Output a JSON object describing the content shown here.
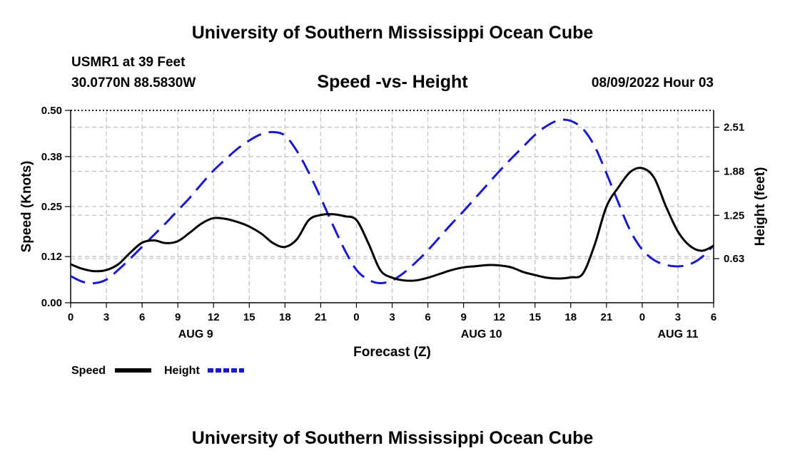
{
  "page_title": "University of Southern Mississippi Ocean Cube",
  "footer_title": "University of Southern Mississippi Ocean Cube",
  "station": "USMR1 at 39 Feet",
  "coords": "30.0770N  88.5830W",
  "date": "08/09/2022 Hour 03",
  "chart_data": {
    "type": "line",
    "title": "Speed -vs- Height",
    "xlabel": "Forecast (Z)",
    "ylabel": "Speed (Knots)",
    "ylabel_right": "Height (feet)",
    "x_hours": [
      0,
      3,
      6,
      9,
      12,
      15,
      18,
      21,
      24,
      27,
      30,
      33,
      36,
      39,
      42,
      45,
      48,
      51,
      54
    ],
    "xticks": [
      "0",
      "3",
      "6",
      "9",
      "12",
      "15",
      "18",
      "21",
      "0",
      "3",
      "6",
      "9",
      "12",
      "15",
      "18",
      "21",
      "0",
      "3",
      "6"
    ],
    "day_labels": [
      {
        "label": "AUG 9",
        "hour": 10.5
      },
      {
        "label": "AUG 10",
        "hour": 34.5
      },
      {
        "label": "AUG 11",
        "hour": 51
      }
    ],
    "ylim": [
      0,
      0.5
    ],
    "yticks": [
      "0.00",
      "0.12",
      "0.25",
      "0.38",
      "0.50"
    ],
    "ylim_right": [
      0,
      2.75
    ],
    "yticks_right": [
      "0.63",
      "1.25",
      "1.88",
      "2.51"
    ],
    "legend": [
      {
        "name": "Speed",
        "color": "#000000"
      },
      {
        "name": "Height",
        "color": "#1a1acc"
      }
    ],
    "series": [
      {
        "name": "Speed",
        "axis": "left",
        "color": "#000000",
        "dashed": false,
        "x": [
          0,
          1,
          2,
          3,
          4,
          5,
          6,
          7,
          8,
          9,
          10,
          11,
          12,
          13,
          14,
          15,
          16,
          17,
          18,
          19,
          20,
          21,
          22,
          23,
          24,
          25,
          26,
          27,
          28,
          29,
          30,
          31,
          32,
          33,
          34,
          35,
          36,
          37,
          38,
          39,
          40,
          41,
          42,
          43,
          44,
          45,
          46,
          47,
          48,
          49,
          50,
          51,
          52,
          53,
          54
        ],
        "values": [
          0.1,
          0.088,
          0.082,
          0.085,
          0.1,
          0.13,
          0.156,
          0.162,
          0.155,
          0.16,
          0.182,
          0.206,
          0.22,
          0.218,
          0.21,
          0.198,
          0.18,
          0.155,
          0.145,
          0.165,
          0.215,
          0.228,
          0.23,
          0.225,
          0.215,
          0.155,
          0.085,
          0.065,
          0.058,
          0.058,
          0.065,
          0.075,
          0.085,
          0.092,
          0.095,
          0.098,
          0.097,
          0.092,
          0.08,
          0.072,
          0.065,
          0.063,
          0.066,
          0.075,
          0.15,
          0.25,
          0.3,
          0.34,
          0.35,
          0.325,
          0.25,
          0.185,
          0.148,
          0.135,
          0.148
        ]
      },
      {
        "name": "Height",
        "axis": "right",
        "color": "#1a1acc",
        "dashed": true,
        "x": [
          0,
          1,
          2,
          3,
          4,
          5,
          6,
          7,
          8,
          9,
          10,
          11,
          12,
          13,
          14,
          15,
          16,
          17,
          18,
          19,
          20,
          21,
          22,
          23,
          24,
          25,
          26,
          27,
          28,
          29,
          30,
          31,
          32,
          33,
          34,
          35,
          36,
          37,
          38,
          39,
          40,
          41,
          42,
          43,
          44,
          45,
          46,
          47,
          48,
          49,
          50,
          51,
          52,
          53,
          54
        ],
        "values": [
          0.38,
          0.3,
          0.28,
          0.33,
          0.47,
          0.63,
          0.8,
          0.97,
          1.14,
          1.32,
          1.5,
          1.7,
          1.89,
          2.05,
          2.2,
          2.32,
          2.41,
          2.44,
          2.39,
          2.17,
          1.86,
          1.5,
          1.12,
          0.76,
          0.47,
          0.33,
          0.28,
          0.32,
          0.43,
          0.58,
          0.75,
          0.94,
          1.13,
          1.31,
          1.5,
          1.69,
          1.88,
          2.06,
          2.23,
          2.4,
          2.53,
          2.61,
          2.6,
          2.49,
          2.24,
          1.85,
          1.43,
          1.03,
          0.76,
          0.61,
          0.54,
          0.52,
          0.55,
          0.65,
          0.82
        ]
      }
    ]
  }
}
